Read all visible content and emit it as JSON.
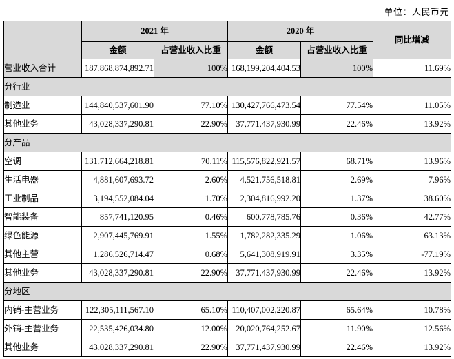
{
  "meta": {
    "unit_label": "单位：人民币元"
  },
  "table": {
    "headers": {
      "year_2021": "2021 年",
      "year_2020": "2020 年",
      "amount": "金额",
      "ratio": "占营业收入比重",
      "yoy": "同比增减"
    },
    "rows": [
      {
        "type": "data",
        "highlight": true,
        "label": "营业收入合计",
        "amount_2021": "187,868,874,892.71",
        "ratio_2021": "100%",
        "amount_2020": "168,199,204,404.53",
        "ratio_2020": "100%",
        "yoy": "11.69%"
      },
      {
        "type": "section",
        "label": "分行业"
      },
      {
        "type": "data",
        "label": "制造业",
        "amount_2021": "144,840,537,601.90",
        "ratio_2021": "77.10%",
        "amount_2020": "130,427,766,473.54",
        "ratio_2020": "77.54%",
        "yoy": "11.05%"
      },
      {
        "type": "data",
        "label": "其他业务",
        "amount_2021": "43,028,337,290.81",
        "ratio_2021": "22.90%",
        "amount_2020": "37,771,437,930.99",
        "ratio_2020": "22.46%",
        "yoy": "13.92%"
      },
      {
        "type": "section",
        "label": "分产品"
      },
      {
        "type": "data",
        "label": "空调",
        "amount_2021": "131,712,664,218.81",
        "ratio_2021": "70.11%",
        "amount_2020": "115,576,822,921.57",
        "ratio_2020": "68.71%",
        "yoy": "13.96%"
      },
      {
        "type": "data",
        "label": "生活电器",
        "amount_2021": "4,881,607,693.72",
        "ratio_2021": "2.60%",
        "amount_2020": "4,521,756,518.81",
        "ratio_2020": "2.69%",
        "yoy": "7.96%"
      },
      {
        "type": "data",
        "label": "工业制品",
        "amount_2021": "3,194,552,084.04",
        "ratio_2021": "1.70%",
        "amount_2020": "2,304,816,992.20",
        "ratio_2020": "1.37%",
        "yoy": "38.60%"
      },
      {
        "type": "data",
        "label": "智能装备",
        "amount_2021": "857,741,120.95",
        "ratio_2021": "0.46%",
        "amount_2020": "600,778,785.76",
        "ratio_2020": "0.36%",
        "yoy": "42.77%"
      },
      {
        "type": "data",
        "label": "绿色能源",
        "amount_2021": "2,907,445,769.91",
        "ratio_2021": "1.55%",
        "amount_2020": "1,782,282,335.29",
        "ratio_2020": "1.06%",
        "yoy": "63.13%"
      },
      {
        "type": "data",
        "label": "其他主营",
        "amount_2021": "1,286,526,714.47",
        "ratio_2021": "0.68%",
        "amount_2020": "5,641,308,919.91",
        "ratio_2020": "3.35%",
        "yoy": "-77.19%"
      },
      {
        "type": "data",
        "label": "其他业务",
        "amount_2021": "43,028,337,290.81",
        "ratio_2021": "22.90%",
        "amount_2020": "37,771,437,930.99",
        "ratio_2020": "22.46%",
        "yoy": "13.92%"
      },
      {
        "type": "section",
        "label": "分地区"
      },
      {
        "type": "data",
        "label": "内销-主营业务",
        "amount_2021": "122,305,111,567.10",
        "ratio_2021": "65.10%",
        "amount_2020": "110,407,002,220.87",
        "ratio_2020": "65.64%",
        "yoy": "10.78%"
      },
      {
        "type": "data",
        "label": "外销-主营业务",
        "amount_2021": "22,535,426,034.80",
        "ratio_2021": "12.00%",
        "amount_2020": "20,020,764,252.67",
        "ratio_2020": "11.90%",
        "yoy": "12.56%"
      },
      {
        "type": "data",
        "label": "其他业务",
        "amount_2021": "43,028,337,290.81",
        "ratio_2021": "22.90%",
        "amount_2020": "37,771,437,930.99",
        "ratio_2020": "22.46%",
        "yoy": "13.92%"
      }
    ]
  },
  "colors": {
    "header_fill": "#d9d9d9",
    "border": "#000000",
    "text": "#000000",
    "background": "#ffffff"
  }
}
